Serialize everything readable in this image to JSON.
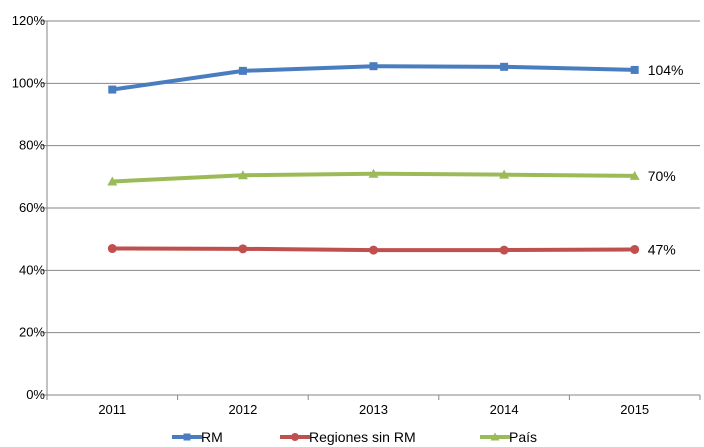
{
  "chart_data": {
    "type": "line",
    "categories": [
      "2011",
      "2012",
      "2013",
      "2014",
      "2015"
    ],
    "series": [
      {
        "name": "RM",
        "values": [
          98,
          104,
          105.5,
          105.3,
          104.3
        ],
        "color": "#4a7dbf",
        "marker": "square",
        "end_label": "104%"
      },
      {
        "name": "Regiones sin RM",
        "values": [
          47,
          46.9,
          46.5,
          46.5,
          46.7
        ],
        "color": "#c0504d",
        "marker": "circle",
        "end_label": "47%"
      },
      {
        "name": "País",
        "values": [
          68.5,
          70.5,
          71,
          70.7,
          70.3
        ],
        "color": "#9bbb59",
        "marker": "triangle",
        "end_label": "70%"
      }
    ],
    "yticks": [
      "0%",
      "20%",
      "40%",
      "60%",
      "80%",
      "100%",
      "120%"
    ],
    "ylim": [
      0,
      120
    ],
    "grid": true,
    "legend_position": "bottom",
    "title": "",
    "xlabel": "",
    "ylabel": ""
  }
}
